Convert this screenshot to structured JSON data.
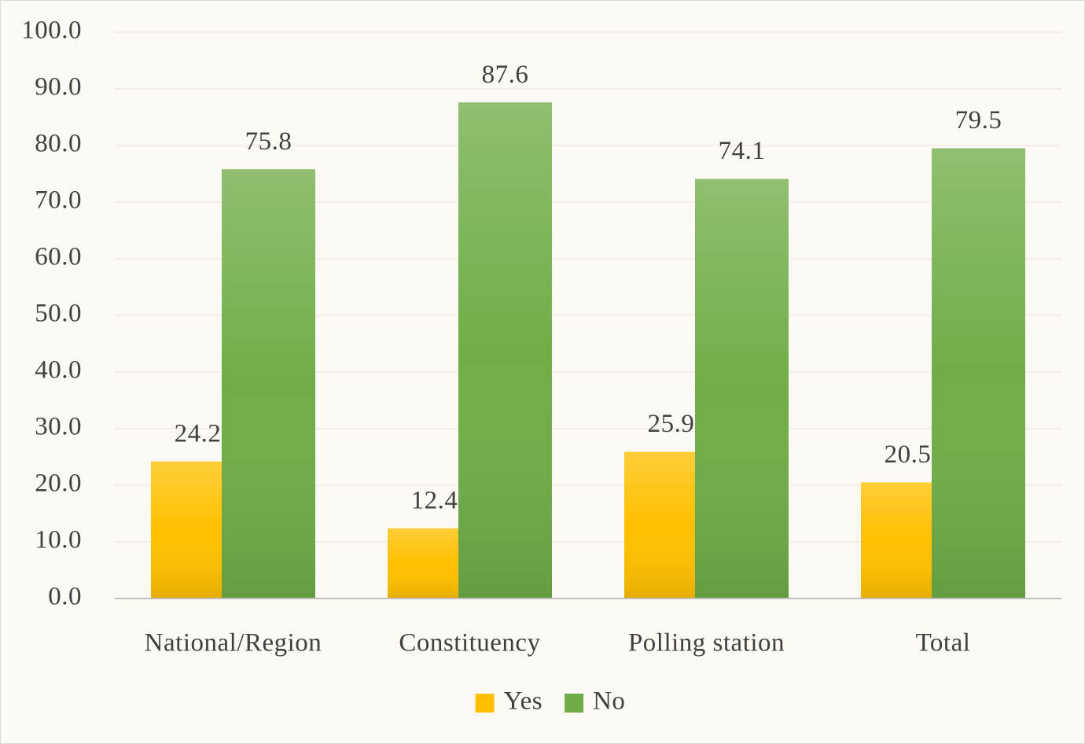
{
  "chart_data": {
    "type": "bar",
    "categories": [
      "National/Region",
      "Constituency",
      "Polling station",
      "Total"
    ],
    "series": [
      {
        "name": "Yes",
        "color": "#ffc000",
        "values": [
          24.2,
          12.4,
          25.9,
          20.5
        ]
      },
      {
        "name": "No",
        "color": "#70ad47",
        "values": [
          75.8,
          87.6,
          74.1,
          79.5
        ]
      }
    ],
    "ylim": [
      0,
      100
    ],
    "yticks": [
      {
        "value": 0,
        "label": "0.0"
      },
      {
        "value": 10,
        "label": "10.0"
      },
      {
        "value": 20,
        "label": "20.0"
      },
      {
        "value": 30,
        "label": "30.0"
      },
      {
        "value": 40,
        "label": "40.0"
      },
      {
        "value": 50,
        "label": "50.0"
      },
      {
        "value": 60,
        "label": "60.0"
      },
      {
        "value": 70,
        "label": "70.0"
      },
      {
        "value": 80,
        "label": "80.0"
      },
      {
        "value": 90,
        "label": "90.0"
      },
      {
        "value": 100,
        "label": "100.0"
      }
    ],
    "grid": true,
    "legend": "bottom"
  }
}
